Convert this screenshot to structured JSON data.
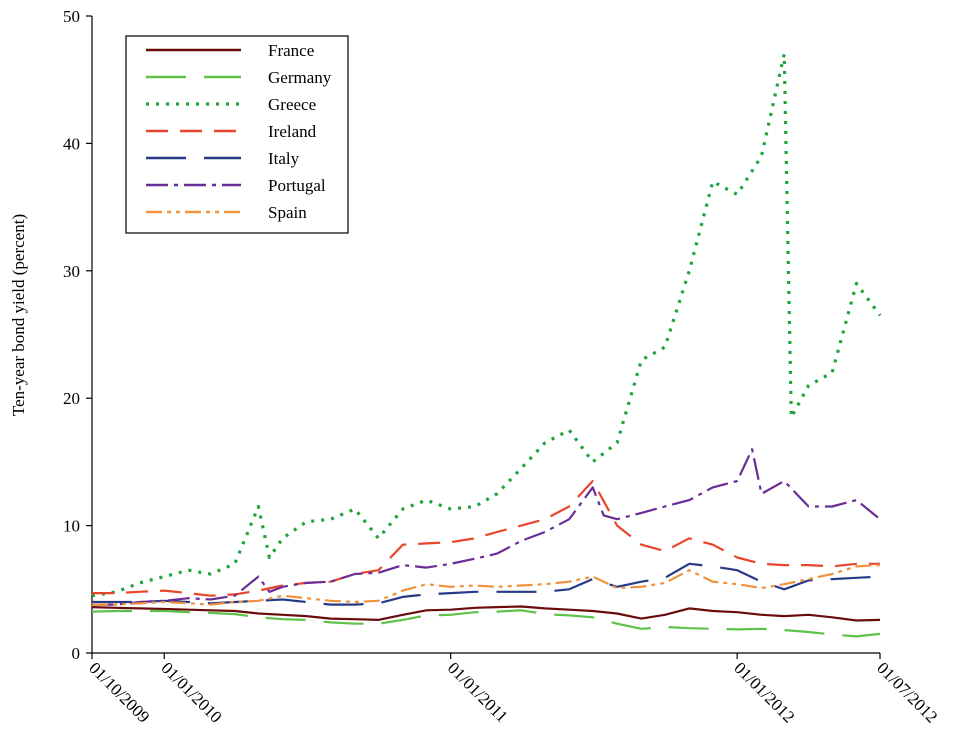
{
  "chart_data": {
    "type": "line",
    "title": "",
    "xlabel": "",
    "ylabel": "Ten-year bond yield (percent)",
    "ylim": [
      0,
      50
    ],
    "xlim": [
      "2009-10-01",
      "2012-07-01"
    ],
    "y_ticks": [
      0,
      10,
      20,
      30,
      40,
      50
    ],
    "x_ticks": [
      {
        "date": "2009-10-01",
        "label": "01/10/2009"
      },
      {
        "date": "2010-01-01",
        "label": "01/01/2010"
      },
      {
        "date": "2011-01-01",
        "label": "01/01/2011"
      },
      {
        "date": "2012-01-01",
        "label": "01/01/2012"
      },
      {
        "date": "2012-07-01",
        "label": "01/07/2012"
      }
    ],
    "grid": false,
    "legend_position": "top-left",
    "series": [
      {
        "name": "France",
        "color": "#6b0c0c",
        "dash": "solid",
        "points": [
          [
            "2009-10-01",
            3.6
          ],
          [
            "2009-11-01",
            3.55
          ],
          [
            "2009-12-01",
            3.5
          ],
          [
            "2010-01-01",
            3.45
          ],
          [
            "2010-02-01",
            3.4
          ],
          [
            "2010-03-01",
            3.35
          ],
          [
            "2010-04-01",
            3.3
          ],
          [
            "2010-05-01",
            3.1
          ],
          [
            "2010-06-01",
            3.0
          ],
          [
            "2010-07-01",
            2.9
          ],
          [
            "2010-08-01",
            2.7
          ],
          [
            "2010-09-01",
            2.65
          ],
          [
            "2010-10-01",
            2.6
          ],
          [
            "2010-11-01",
            3.0
          ],
          [
            "2010-12-01",
            3.35
          ],
          [
            "2011-01-01",
            3.4
          ],
          [
            "2011-02-01",
            3.55
          ],
          [
            "2011-03-01",
            3.6
          ],
          [
            "2011-04-01",
            3.65
          ],
          [
            "2011-05-01",
            3.5
          ],
          [
            "2011-06-01",
            3.4
          ],
          [
            "2011-07-01",
            3.3
          ],
          [
            "2011-08-01",
            3.1
          ],
          [
            "2011-09-01",
            2.7
          ],
          [
            "2011-10-01",
            3.0
          ],
          [
            "2011-11-01",
            3.5
          ],
          [
            "2011-12-01",
            3.3
          ],
          [
            "2012-01-01",
            3.2
          ],
          [
            "2012-02-01",
            3.0
          ],
          [
            "2012-03-01",
            2.9
          ],
          [
            "2012-04-01",
            3.0
          ],
          [
            "2012-05-01",
            2.8
          ],
          [
            "2012-06-01",
            2.55
          ],
          [
            "2012-07-01",
            2.6
          ]
        ]
      },
      {
        "name": "Germany",
        "color": "#5ec24a",
        "dash": "long-dash",
        "points": [
          [
            "2009-10-01",
            3.25
          ],
          [
            "2009-11-01",
            3.3
          ],
          [
            "2009-12-01",
            3.3
          ],
          [
            "2010-01-01",
            3.3
          ],
          [
            "2010-02-01",
            3.2
          ],
          [
            "2010-03-01",
            3.15
          ],
          [
            "2010-04-01",
            3.05
          ],
          [
            "2010-05-01",
            2.8
          ],
          [
            "2010-06-01",
            2.65
          ],
          [
            "2010-07-01",
            2.6
          ],
          [
            "2010-08-01",
            2.4
          ],
          [
            "2010-09-01",
            2.3
          ],
          [
            "2010-10-01",
            2.3
          ],
          [
            "2010-11-01",
            2.6
          ],
          [
            "2010-12-01",
            2.95
          ],
          [
            "2011-01-01",
            3.0
          ],
          [
            "2011-02-01",
            3.2
          ],
          [
            "2011-03-01",
            3.25
          ],
          [
            "2011-04-01",
            3.35
          ],
          [
            "2011-05-01",
            3.05
          ],
          [
            "2011-06-01",
            2.95
          ],
          [
            "2011-07-01",
            2.8
          ],
          [
            "2011-08-01",
            2.3
          ],
          [
            "2011-09-01",
            1.9
          ],
          [
            "2011-10-01",
            2.05
          ],
          [
            "2011-11-01",
            1.95
          ],
          [
            "2011-12-01",
            1.9
          ],
          [
            "2012-01-01",
            1.85
          ],
          [
            "2012-02-01",
            1.9
          ],
          [
            "2012-03-01",
            1.8
          ],
          [
            "2012-04-01",
            1.65
          ],
          [
            "2012-05-01",
            1.45
          ],
          [
            "2012-06-01",
            1.3
          ],
          [
            "2012-07-01",
            1.5
          ]
        ]
      },
      {
        "name": "Greece",
        "color": "#1fa33c",
        "dash": "dotted",
        "points": [
          [
            "2009-10-01",
            4.5
          ],
          [
            "2009-11-01",
            4.8
          ],
          [
            "2009-12-01",
            5.5
          ],
          [
            "2010-01-01",
            6.0
          ],
          [
            "2010-02-01",
            6.5
          ],
          [
            "2010-03-01",
            6.2
          ],
          [
            "2010-04-01",
            7.0
          ],
          [
            "2010-05-01",
            11.5
          ],
          [
            "2010-05-15",
            7.5
          ],
          [
            "2010-06-01",
            9.0
          ],
          [
            "2010-07-01",
            10.3
          ],
          [
            "2010-08-01",
            10.5
          ],
          [
            "2010-09-01",
            11.3
          ],
          [
            "2010-10-01",
            9.0
          ],
          [
            "2010-11-01",
            11.3
          ],
          [
            "2010-12-01",
            12.0
          ],
          [
            "2011-01-01",
            11.3
          ],
          [
            "2011-02-01",
            11.5
          ],
          [
            "2011-03-01",
            12.5
          ],
          [
            "2011-04-01",
            14.5
          ],
          [
            "2011-05-01",
            16.5
          ],
          [
            "2011-06-01",
            17.5
          ],
          [
            "2011-07-01",
            15.0
          ],
          [
            "2011-08-01",
            16.5
          ],
          [
            "2011-09-01",
            23.0
          ],
          [
            "2011-10-01",
            24.0
          ],
          [
            "2011-11-01",
            30.0
          ],
          [
            "2011-12-01",
            37.0
          ],
          [
            "2012-01-01",
            36.0
          ],
          [
            "2012-02-01",
            39.0
          ],
          [
            "2012-03-01",
            47.0
          ],
          [
            "2012-03-10",
            18.5
          ],
          [
            "2012-04-01",
            21.0
          ],
          [
            "2012-05-01",
            22.0
          ],
          [
            "2012-06-01",
            29.0
          ],
          [
            "2012-07-01",
            26.5
          ]
        ]
      },
      {
        "name": "Ireland",
        "color": "#e8452b",
        "dash": "dash",
        "points": [
          [
            "2009-10-01",
            4.7
          ],
          [
            "2009-11-01",
            4.7
          ],
          [
            "2009-12-01",
            4.8
          ],
          [
            "2010-01-01",
            4.9
          ],
          [
            "2010-02-01",
            4.7
          ],
          [
            "2010-03-01",
            4.5
          ],
          [
            "2010-04-01",
            4.6
          ],
          [
            "2010-05-01",
            4.9
          ],
          [
            "2010-06-01",
            5.3
          ],
          [
            "2010-07-01",
            5.5
          ],
          [
            "2010-08-01",
            5.6
          ],
          [
            "2010-09-01",
            6.2
          ],
          [
            "2010-10-01",
            6.5
          ],
          [
            "2010-11-01",
            8.5
          ],
          [
            "2010-12-01",
            8.6
          ],
          [
            "2011-01-01",
            8.7
          ],
          [
            "2011-02-01",
            9.0
          ],
          [
            "2011-03-01",
            9.5
          ],
          [
            "2011-04-01",
            10.0
          ],
          [
            "2011-05-01",
            10.5
          ],
          [
            "2011-06-01",
            11.5
          ],
          [
            "2011-07-01",
            13.5
          ],
          [
            "2011-08-01",
            10.0
          ],
          [
            "2011-09-01",
            8.5
          ],
          [
            "2011-10-01",
            8.0
          ],
          [
            "2011-11-01",
            9.0
          ],
          [
            "2011-12-01",
            8.5
          ],
          [
            "2012-01-01",
            7.5
          ],
          [
            "2012-02-01",
            7.0
          ],
          [
            "2012-03-01",
            6.9
          ],
          [
            "2012-04-01",
            6.9
          ],
          [
            "2012-05-01",
            6.8
          ],
          [
            "2012-06-01",
            7.0
          ],
          [
            "2012-07-01",
            7.0
          ]
        ]
      },
      {
        "name": "Italy",
        "color": "#283a86",
        "dash": "long-dash",
        "points": [
          [
            "2009-10-01",
            4.0
          ],
          [
            "2009-11-01",
            4.0
          ],
          [
            "2009-12-01",
            4.0
          ],
          [
            "2010-01-01",
            4.1
          ],
          [
            "2010-02-01",
            4.0
          ],
          [
            "2010-03-01",
            3.9
          ],
          [
            "2010-04-01",
            4.0
          ],
          [
            "2010-05-01",
            4.1
          ],
          [
            "2010-06-01",
            4.2
          ],
          [
            "2010-07-01",
            4.0
          ],
          [
            "2010-08-01",
            3.8
          ],
          [
            "2010-09-01",
            3.8
          ],
          [
            "2010-10-01",
            3.9
          ],
          [
            "2010-11-01",
            4.4
          ],
          [
            "2010-12-01",
            4.6
          ],
          [
            "2011-01-01",
            4.7
          ],
          [
            "2011-02-01",
            4.8
          ],
          [
            "2011-03-01",
            4.8
          ],
          [
            "2011-04-01",
            4.8
          ],
          [
            "2011-05-01",
            4.8
          ],
          [
            "2011-06-01",
            5.0
          ],
          [
            "2011-07-01",
            5.8
          ],
          [
            "2011-08-01",
            5.2
          ],
          [
            "2011-09-01",
            5.6
          ],
          [
            "2011-10-01",
            5.9
          ],
          [
            "2011-11-01",
            7.0
          ],
          [
            "2011-12-01",
            6.8
          ],
          [
            "2012-01-01",
            6.5
          ],
          [
            "2012-02-01",
            5.6
          ],
          [
            "2012-03-01",
            5.0
          ],
          [
            "2012-04-01",
            5.7
          ],
          [
            "2012-05-01",
            5.8
          ],
          [
            "2012-06-01",
            5.9
          ],
          [
            "2012-07-01",
            6.0
          ]
        ]
      },
      {
        "name": "Portugal",
        "color": "#6a2c96",
        "dash": "dash-dot",
        "points": [
          [
            "2009-10-01",
            3.8
          ],
          [
            "2009-11-01",
            3.8
          ],
          [
            "2009-12-01",
            4.0
          ],
          [
            "2010-01-01",
            4.1
          ],
          [
            "2010-02-01",
            4.3
          ],
          [
            "2010-03-01",
            4.2
          ],
          [
            "2010-04-01",
            4.5
          ],
          [
            "2010-05-01",
            6.0
          ],
          [
            "2010-05-15",
            4.8
          ],
          [
            "2010-06-01",
            5.2
          ],
          [
            "2010-07-01",
            5.5
          ],
          [
            "2010-08-01",
            5.6
          ],
          [
            "2010-09-01",
            6.2
          ],
          [
            "2010-10-01",
            6.3
          ],
          [
            "2010-11-01",
            6.9
          ],
          [
            "2010-12-01",
            6.7
          ],
          [
            "2011-01-01",
            7.0
          ],
          [
            "2011-02-01",
            7.4
          ],
          [
            "2011-03-01",
            7.8
          ],
          [
            "2011-04-01",
            8.8
          ],
          [
            "2011-05-01",
            9.5
          ],
          [
            "2011-06-01",
            10.5
          ],
          [
            "2011-07-01",
            13.0
          ],
          [
            "2011-07-15",
            10.8
          ],
          [
            "2011-08-01",
            10.5
          ],
          [
            "2011-09-01",
            11.0
          ],
          [
            "2011-10-01",
            11.5
          ],
          [
            "2011-11-01",
            12.0
          ],
          [
            "2011-12-01",
            13.0
          ],
          [
            "2012-01-01",
            13.5
          ],
          [
            "2012-01-20",
            16.0
          ],
          [
            "2012-02-01",
            12.5
          ],
          [
            "2012-03-01",
            13.5
          ],
          [
            "2012-04-01",
            11.5
          ],
          [
            "2012-05-01",
            11.5
          ],
          [
            "2012-06-01",
            12.0
          ],
          [
            "2012-07-01",
            10.5
          ]
        ]
      },
      {
        "name": "Spain",
        "color": "#f0923f",
        "dash": "dash-dot-dot",
        "points": [
          [
            "2009-10-01",
            3.8
          ],
          [
            "2009-11-01",
            3.8
          ],
          [
            "2009-12-01",
            3.9
          ],
          [
            "2010-01-01",
            4.0
          ],
          [
            "2010-02-01",
            3.9
          ],
          [
            "2010-03-01",
            3.8
          ],
          [
            "2010-04-01",
            4.0
          ],
          [
            "2010-05-01",
            4.1
          ],
          [
            "2010-06-01",
            4.5
          ],
          [
            "2010-07-01",
            4.3
          ],
          [
            "2010-08-01",
            4.1
          ],
          [
            "2010-09-01",
            4.0
          ],
          [
            "2010-10-01",
            4.1
          ],
          [
            "2010-11-01",
            4.9
          ],
          [
            "2010-12-01",
            5.4
          ],
          [
            "2011-01-01",
            5.2
          ],
          [
            "2011-02-01",
            5.3
          ],
          [
            "2011-03-01",
            5.2
          ],
          [
            "2011-04-01",
            5.3
          ],
          [
            "2011-05-01",
            5.4
          ],
          [
            "2011-06-01",
            5.6
          ],
          [
            "2011-07-01",
            6.0
          ],
          [
            "2011-08-01",
            5.1
          ],
          [
            "2011-09-01",
            5.2
          ],
          [
            "2011-10-01",
            5.5
          ],
          [
            "2011-11-01",
            6.5
          ],
          [
            "2011-12-01",
            5.6
          ],
          [
            "2012-01-01",
            5.4
          ],
          [
            "2012-02-01",
            5.1
          ],
          [
            "2012-03-01",
            5.4
          ],
          [
            "2012-04-01",
            5.8
          ],
          [
            "2012-05-01",
            6.2
          ],
          [
            "2012-06-01",
            6.8
          ],
          [
            "2012-07-01",
            6.9
          ]
        ]
      }
    ]
  }
}
